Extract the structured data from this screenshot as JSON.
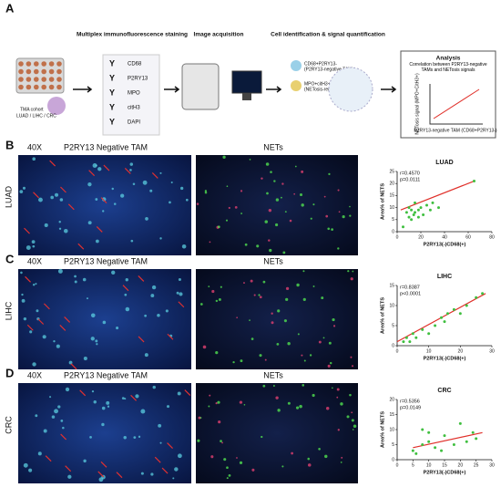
{
  "panel_a": {
    "letter": "A",
    "cohort": [
      "TMA cohort",
      "LUAD / LIHC / CRC"
    ],
    "steps": [
      "Multiplex immunofluorescence staining",
      "Image acquisition",
      "Cell identification & signal quantification",
      "Analysis"
    ],
    "markers": [
      "CD68",
      "P2RY13",
      "MPO",
      "citH3",
      "DAPI"
    ],
    "cell_labels": [
      "CD68+P2RY13-",
      "(P2RY13-negative TAM)",
      "MPO+citH3+",
      "(NETosis-related signal)"
    ],
    "analysis_text": "Correlation between P2RY13-negative TAMs and NETosis signals",
    "analysis_y": "NETosis signal (MPO+CitH3+)",
    "analysis_x": "P2RY13-negative TAM (CD68+P2RY13-)"
  },
  "rows": [
    {
      "letter": "B",
      "magnification": "40X",
      "left_title": "P2RY13 Negative TAM",
      "right_title": "NETs",
      "cancer": "LUAD"
    },
    {
      "letter": "C",
      "magnification": "40X",
      "left_title": "P2RY13 Negative TAM",
      "right_title": "NETs",
      "cancer": "LIHC"
    },
    {
      "letter": "D",
      "magnification": "40X",
      "left_title": "P2RY13 Negative TAM",
      "right_title": "NETs",
      "cancer": "CRC"
    }
  ],
  "chart_data": [
    {
      "type": "scatter",
      "title": "LUAD",
      "annotations": [
        "r=0.4570",
        "p=0.0111"
      ],
      "x_label": "P2RY13(-)CD68(+)",
      "y_label": "Area% of NETS",
      "xlim": [
        0,
        80
      ],
      "ylim": [
        0,
        25
      ],
      "xticks": [
        0,
        20,
        40,
        60,
        80
      ],
      "yticks": [
        0,
        5,
        10,
        15,
        20,
        25
      ],
      "color": "#3fbf3f",
      "fit_color": "#e0302a",
      "x": [
        5,
        8,
        10,
        10,
        12,
        12,
        14,
        15,
        15,
        18,
        18,
        20,
        22,
        25,
        28,
        30,
        35,
        65
      ],
      "y": [
        2,
        8,
        6,
        10,
        5,
        9,
        7,
        8,
        12,
        6,
        9,
        10,
        7,
        11,
        9,
        12,
        10,
        21
      ],
      "fit": {
        "x": [
          3,
          65
        ],
        "y": [
          9,
          21
        ]
      }
    },
    {
      "type": "scatter",
      "title": "LIHC",
      "annotations": [
        "r=0.8387",
        "p<0.0001"
      ],
      "x_label": "P2RY13(-)CD68(+)",
      "y_label": "Area% of NETS",
      "xlim": [
        0,
        30
      ],
      "ylim": [
        0,
        15
      ],
      "xticks": [
        0,
        10,
        20,
        30
      ],
      "yticks": [
        0,
        5,
        10,
        15
      ],
      "color": "#3fbf3f",
      "fit_color": "#e0302a",
      "x": [
        2,
        3,
        4,
        5,
        6,
        8,
        10,
        12,
        14,
        15,
        16,
        18,
        20,
        22,
        25,
        27
      ],
      "y": [
        1,
        2,
        1,
        3,
        2,
        4,
        3,
        5,
        7,
        6,
        8,
        9,
        8,
        10,
        12,
        13
      ],
      "fit": {
        "x": [
          0,
          28
        ],
        "y": [
          1,
          13
        ]
      }
    },
    {
      "type": "scatter",
      "title": "CRC",
      "annotations": [
        "r=0.5356",
        "p=0.0149"
      ],
      "x_label": "P2RY13(-)CD68(+)",
      "y_label": "Area% of NETS",
      "xlim": [
        0,
        30
      ],
      "ylim": [
        0,
        20
      ],
      "xticks": [
        0,
        5,
        10,
        15,
        20,
        25,
        30
      ],
      "yticks": [
        0,
        5,
        10,
        15,
        20
      ],
      "color": "#3fbf3f",
      "fit_color": "#e0302a",
      "x": [
        5,
        6,
        8,
        8,
        10,
        10,
        12,
        14,
        15,
        18,
        20,
        22,
        24,
        25
      ],
      "y": [
        3,
        2,
        10,
        5,
        6,
        9,
        4,
        3,
        8,
        5,
        12,
        6,
        9,
        7
      ],
      "fit": {
        "x": [
          5,
          27
        ],
        "y": [
          4,
          9
        ]
      }
    }
  ]
}
